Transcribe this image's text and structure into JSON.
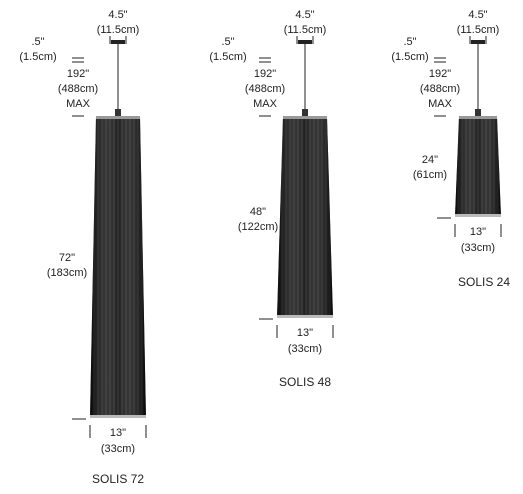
{
  "products": [
    {
      "name": "SOLIS 72",
      "canopy_width": {
        "in": "4.5\"",
        "cm": "(11.5cm)"
      },
      "canopy_height": {
        "in": ".5\"",
        "cm": "(1.5cm)"
      },
      "cable": {
        "in": "192\"",
        "cm": "(488cm)",
        "note": "MAX"
      },
      "height": {
        "in": "72\"",
        "cm": "(183cm)"
      },
      "width": {
        "in": "13\"",
        "cm": "(33cm)"
      }
    },
    {
      "name": "SOLIS 48",
      "canopy_width": {
        "in": "4.5\"",
        "cm": "(11.5cm)"
      },
      "canopy_height": {
        "in": ".5\"",
        "cm": "(1.5cm)"
      },
      "cable": {
        "in": "192\"",
        "cm": "(488cm)",
        "note": "MAX"
      },
      "height": {
        "in": "48\"",
        "cm": "(122cm)"
      },
      "width": {
        "in": "13\"",
        "cm": "(33cm)"
      }
    },
    {
      "name": "SOLIS 24",
      "canopy_width": {
        "in": "4.5\"",
        "cm": "(11.5cm)"
      },
      "canopy_height": {
        "in": ".5\"",
        "cm": "(1.5cm)"
      },
      "cable": {
        "in": "192\"",
        "cm": "(488cm)",
        "note": "MAX"
      },
      "height": {
        "in": "24\"",
        "cm": "(61cm)"
      },
      "width": {
        "in": "13\"",
        "cm": "(33cm)"
      }
    }
  ]
}
